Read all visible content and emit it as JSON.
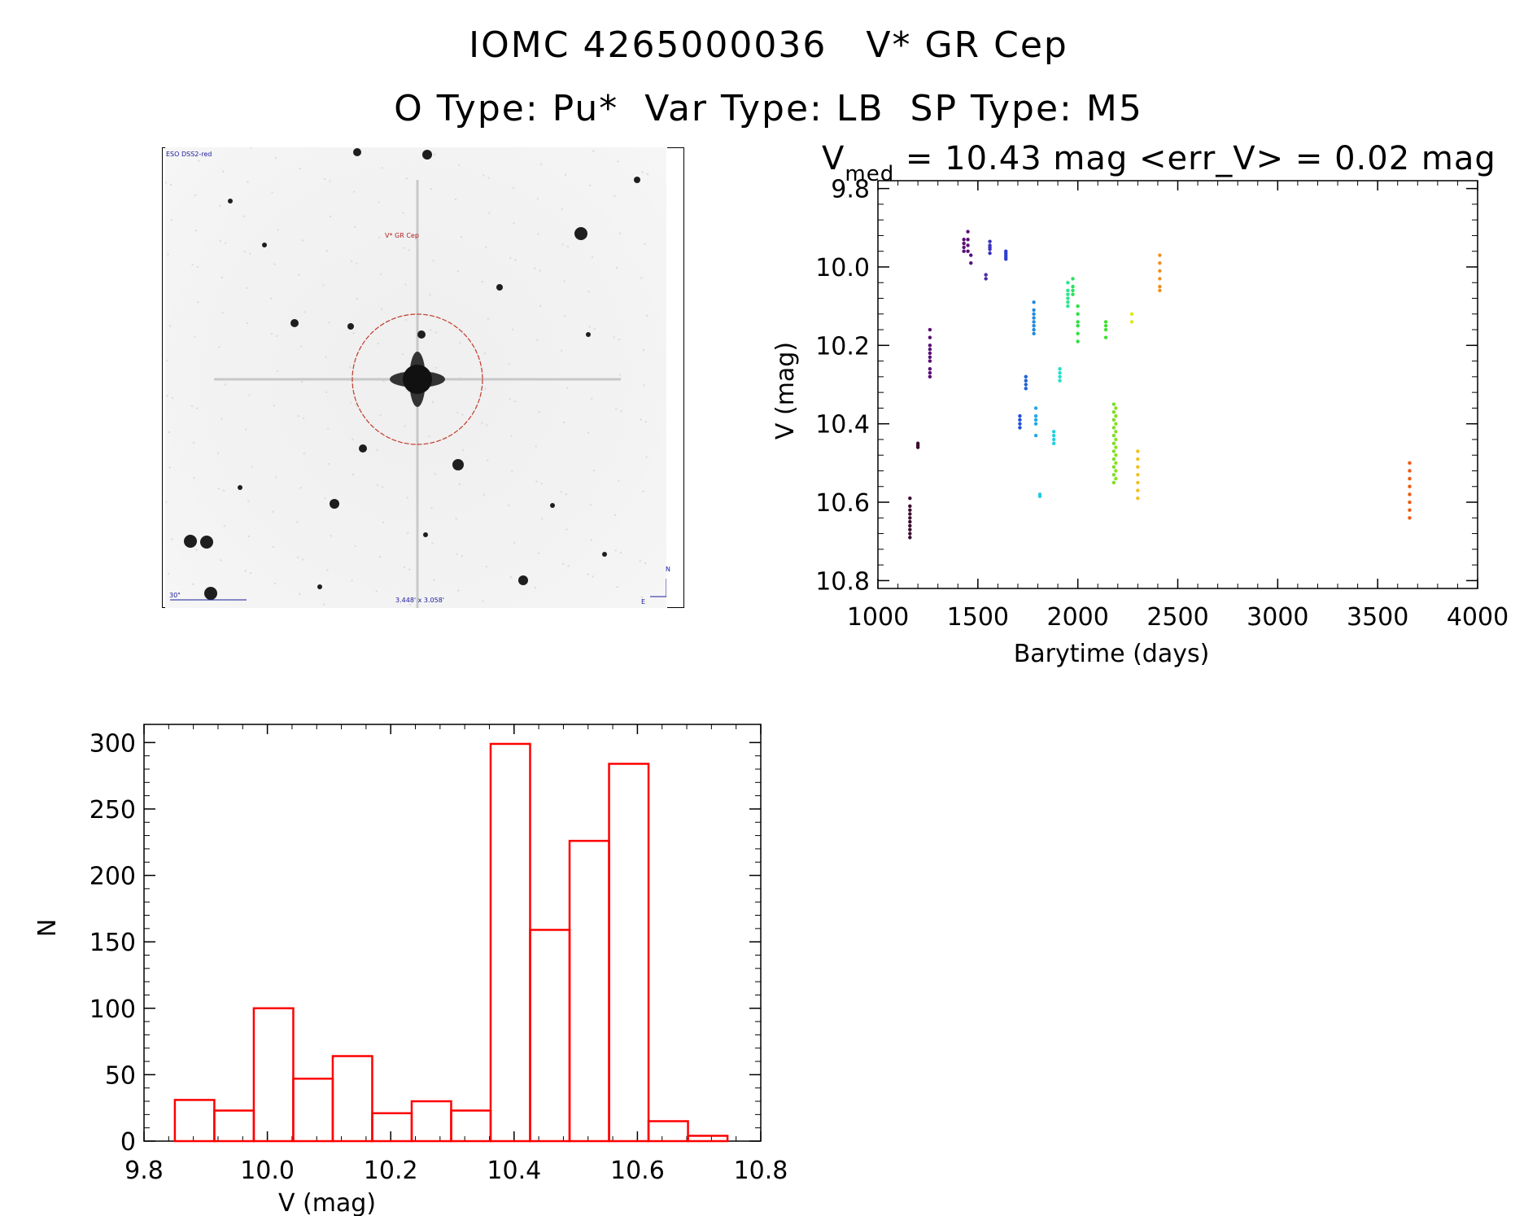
{
  "header": {
    "line1": "IOMC 4265000036   V* GR Cep",
    "line2": "O Type: Pu*  Var Type: LB  SP Type: M5"
  },
  "sky_image": {
    "survey_label": "ESO DSS2-red",
    "object_label": "V* GR Cep",
    "scale_label": "30\"",
    "fov_label": "3.448' x 3.058'",
    "north_label": "N",
    "east_label": "E",
    "colors": {
      "circle": "#c0392b",
      "text_blue": "#1a1a9c",
      "text_red": "#b22222"
    }
  },
  "lightcurve": {
    "title_main": "V",
    "title_sub": "med",
    "title_rest": " = 10.43 mag <err_V> = 0.02 mag",
    "xlabel": "Barytime (days)",
    "ylabel": "V (mag)"
  },
  "histogram": {
    "xlabel": "V (mag)",
    "ylabel": "N"
  },
  "chart_data": [
    {
      "type": "scatter",
      "title": "Vmed = 10.43 mag <err_V> = 0.02 mag",
      "xlabel": "Barytime (days)",
      "ylabel": "V (mag)",
      "xlim": [
        1000,
        4000
      ],
      "ylim": [
        10.82,
        9.78
      ],
      "y_inverted": true,
      "x_ticks": [
        1000,
        1500,
        2000,
        2500,
        3000,
        3500,
        4000
      ],
      "x_tick_labels": [
        "1000",
        "1500",
        "2000",
        "2500",
        "3000",
        "3500",
        "4000"
      ],
      "y_ticks": [
        9.8,
        10.0,
        10.2,
        10.4,
        10.6,
        10.8
      ],
      "y_tick_labels": [
        "9.8",
        "10.0",
        "10.2",
        "10.4",
        "10.6",
        "10.8"
      ],
      "clusters": [
        {
          "x": 1160,
          "y": [
            10.59,
            10.61,
            10.62,
            10.63,
            10.64,
            10.65,
            10.66,
            10.67,
            10.68,
            10.69
          ],
          "color": "#3b0a2e"
        },
        {
          "x": 1200,
          "y": [
            10.45,
            10.455,
            10.46
          ],
          "color": "#3b0a2e"
        },
        {
          "x": 1260,
          "y": [
            10.16,
            10.18,
            10.2,
            10.21,
            10.22,
            10.23,
            10.24,
            10.26,
            10.27,
            10.28
          ],
          "color": "#5a0f78"
        },
        {
          "x": 1430,
          "y": [
            9.93,
            9.94,
            9.95,
            9.96
          ],
          "color": "#5a0f78"
        },
        {
          "x": 1450,
          "y": [
            9.91,
            9.93,
            9.945,
            9.96
          ],
          "color": "#5a0f78"
        },
        {
          "x": 1465,
          "y": [
            9.97,
            9.99
          ],
          "color": "#5a0f78"
        },
        {
          "x": 1540,
          "y": [
            10.02,
            10.03
          ],
          "color": "#4a2aa8"
        },
        {
          "x": 1560,
          "y": [
            9.935,
            9.945,
            9.95,
            9.955,
            9.965
          ],
          "color": "#3a32c0"
        },
        {
          "x": 1640,
          "y": [
            9.96,
            9.965,
            9.97,
            9.975,
            9.98
          ],
          "color": "#2b3fd0"
        },
        {
          "x": 1710,
          "y": [
            10.38,
            10.39,
            10.4,
            10.41
          ],
          "color": "#1f50d8"
        },
        {
          "x": 1740,
          "y": [
            10.28,
            10.29,
            10.3,
            10.31
          ],
          "color": "#1f63d8"
        },
        {
          "x": 1780,
          "y": [
            10.09,
            10.11,
            10.12,
            10.13,
            10.14,
            10.15,
            10.16,
            10.17
          ],
          "color": "#1f8ae0"
        },
        {
          "x": 1790,
          "y": [
            10.36,
            10.38,
            10.39,
            10.4,
            10.43
          ],
          "color": "#22a8e8"
        },
        {
          "x": 1810,
          "y": [
            10.58,
            10.585
          ],
          "color": "#22c8e8"
        },
        {
          "x": 1880,
          "y": [
            10.42,
            10.43,
            10.44,
            10.45
          ],
          "color": "#22d0e0"
        },
        {
          "x": 1910,
          "y": [
            10.26,
            10.27,
            10.28,
            10.29
          ],
          "color": "#25e0c8"
        },
        {
          "x": 1950,
          "y": [
            10.04,
            10.06,
            10.07,
            10.08,
            10.09,
            10.1
          ],
          "color": "#27e88a"
        },
        {
          "x": 1975,
          "y": [
            10.03,
            10.05,
            10.06,
            10.07
          ],
          "color": "#2ae060"
        },
        {
          "x": 2000,
          "y": [
            10.1,
            10.12,
            10.14,
            10.15,
            10.17,
            10.19
          ],
          "color": "#2ee040"
        },
        {
          "x": 2140,
          "y": [
            10.14,
            10.15,
            10.16,
            10.18
          ],
          "color": "#40e030"
        },
        {
          "x": 2180,
          "y": [
            10.35,
            10.37,
            10.39,
            10.41,
            10.43,
            10.45,
            10.47,
            10.49,
            10.51,
            10.53,
            10.55
          ],
          "color": "#7ae020"
        },
        {
          "x": 2190,
          "y": [
            10.36,
            10.38,
            10.4,
            10.42,
            10.44,
            10.46,
            10.48,
            10.5,
            10.52,
            10.54
          ],
          "color": "#8ae020"
        },
        {
          "x": 2270,
          "y": [
            10.12,
            10.14
          ],
          "color": "#d8e820"
        },
        {
          "x": 2300,
          "y": [
            10.47,
            10.49,
            10.51,
            10.53,
            10.55,
            10.57,
            10.59
          ],
          "color": "#f0c020"
        },
        {
          "x": 2410,
          "y": [
            9.97,
            9.99,
            10.01,
            10.03,
            10.05,
            10.06
          ],
          "color": "#f09020"
        },
        {
          "x": 3660,
          "y": [
            10.5,
            10.52,
            10.54,
            10.56,
            10.58,
            10.6,
            10.62,
            10.64
          ],
          "color": "#f05a10"
        }
      ]
    },
    {
      "type": "bar",
      "subtype": "histogram",
      "xlabel": "V (mag)",
      "ylabel": "N",
      "xlim": [
        9.8,
        10.8
      ],
      "ylim": [
        0,
        310
      ],
      "x_ticks": [
        9.8,
        10.0,
        10.2,
        10.4,
        10.6,
        10.8
      ],
      "x_tick_labels": [
        "9.8",
        "10.0",
        "10.2",
        "10.4",
        "10.6",
        "10.8"
      ],
      "y_ticks": [
        0,
        50,
        100,
        150,
        200,
        250,
        300
      ],
      "y_tick_labels": [
        "0",
        "50",
        "100",
        "150",
        "200",
        "250",
        "300"
      ],
      "bin_edges": [
        9.85,
        9.914,
        9.978,
        10.042,
        10.106,
        10.17,
        10.234,
        10.298,
        10.362,
        10.426,
        10.49,
        10.554,
        10.618,
        10.682,
        10.746
      ],
      "counts": [
        31,
        23,
        100,
        47,
        64,
        21,
        30,
        23,
        299,
        159,
        226,
        284,
        15,
        4
      ],
      "color": "#ff0000"
    }
  ]
}
